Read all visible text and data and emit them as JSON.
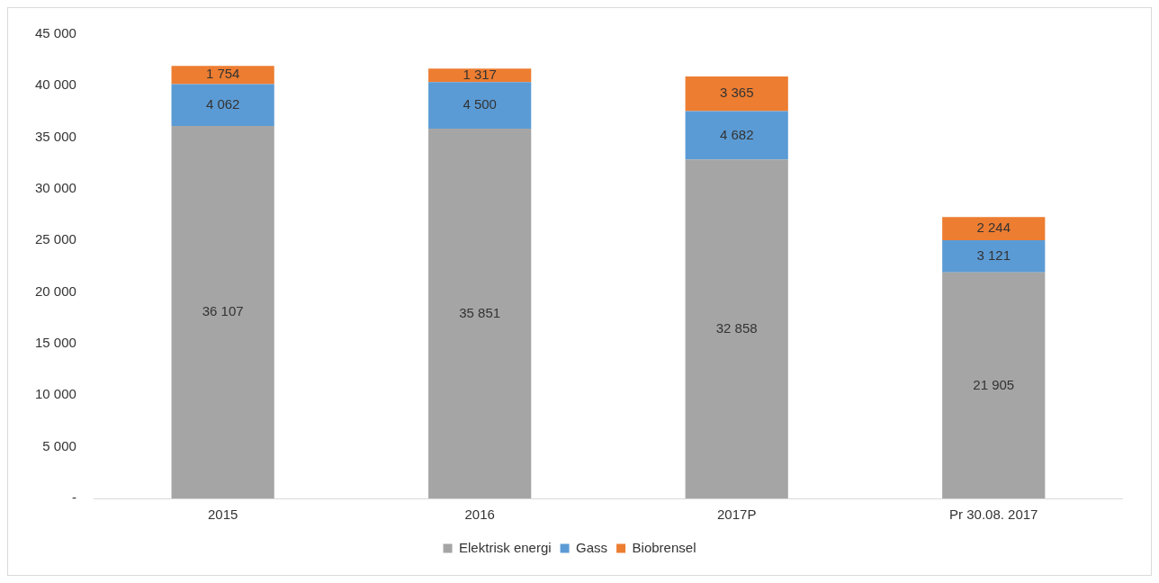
{
  "chart_data": {
    "type": "bar",
    "stacked": true,
    "categories": [
      "2015",
      "2016",
      "2017P",
      "Pr 30.08. 2017"
    ],
    "series": [
      {
        "name": "Elektrisk energi",
        "color": "#a5a5a5",
        "values": [
          36107,
          35851,
          32858,
          21905
        ],
        "value_labels": [
          "36 107",
          "35 851",
          "32 858",
          "21 905"
        ]
      },
      {
        "name": "Gass",
        "color": "#5b9bd5",
        "values": [
          4062,
          4500,
          4682,
          3121
        ],
        "value_labels": [
          "4 062",
          "4 500",
          "4 682",
          "3 121"
        ]
      },
      {
        "name": "Biobrensel",
        "color": "#ed7d31",
        "values": [
          1754,
          1317,
          3365,
          2244
        ],
        "value_labels": [
          "1 754",
          "1 317",
          "3 365",
          "2 244"
        ]
      }
    ],
    "ylim": [
      0,
      45000
    ],
    "yticks": [
      {
        "value": 0,
        "label": "-"
      },
      {
        "value": 5000,
        "label": "5 000"
      },
      {
        "value": 10000,
        "label": "10 000"
      },
      {
        "value": 15000,
        "label": "15 000"
      },
      {
        "value": 20000,
        "label": "20 000"
      },
      {
        "value": 25000,
        "label": "25 000"
      },
      {
        "value": 30000,
        "label": "30 000"
      },
      {
        "value": 35000,
        "label": "35 000"
      },
      {
        "value": 40000,
        "label": "40 000"
      },
      {
        "value": 45000,
        "label": "45 000"
      }
    ],
    "grid": false,
    "legend": "bottom"
  }
}
